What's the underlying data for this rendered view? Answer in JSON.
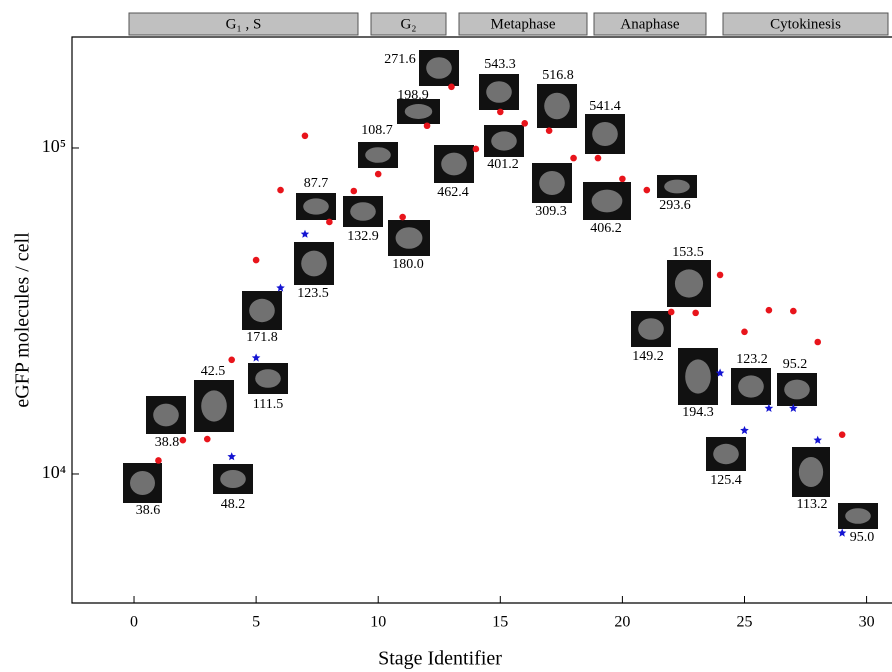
{
  "chart_data": {
    "type": "scatter",
    "xlabel": "Stage Identifier",
    "ylabel": "eGFP molecules / cell",
    "xlim": [
      -2.54,
      31
    ],
    "xticks": [
      0,
      5,
      10,
      15,
      20,
      25,
      30
    ],
    "ylim": [
      4020,
      219000
    ],
    "log_y": true,
    "yticks": [
      {
        "value": 10000,
        "label": "10⁴"
      },
      {
        "value": 100000,
        "label": "10⁵"
      }
    ],
    "phases": [
      "G₁ , S",
      "G₂",
      "Metaphase",
      "Anaphase",
      "Cytokinesis"
    ],
    "series": [
      {
        "marker": "circle",
        "color": "#e8141b",
        "x": [
          1,
          2,
          3,
          4,
          5,
          6,
          7,
          8,
          9,
          10,
          11,
          12,
          13,
          14,
          15,
          16,
          17,
          18,
          19,
          20,
          21,
          22,
          23,
          24,
          25,
          26,
          27,
          28,
          29
        ],
        "values": [
          11000,
          12700,
          12800,
          22400,
          45300,
          74300,
          109000,
          59300,
          73800,
          83200,
          61400,
          117000,
          154000,
          99300,
          129000,
          119000,
          113000,
          93100,
          93100,
          80400,
          74300,
          31400,
          31200,
          40800,
          27300,
          31800,
          31600,
          25400,
          13200
        ]
      },
      {
        "marker": "star",
        "color": "#1414d2",
        "x": [
          4,
          5,
          6,
          7,
          24,
          25,
          26,
          27,
          28,
          29
        ],
        "values": [
          11300,
          22700,
          37200,
          54400,
          20400,
          13600,
          15900,
          15900,
          12700,
          6590
        ]
      }
    ],
    "annotations": [
      "38.6",
      "38.8",
      "42.5",
      "48.2",
      "111.5",
      "171.8",
      "123.5",
      "87.7",
      "132.9",
      "108.7",
      "180.0",
      "198.9",
      "271.6",
      "462.4",
      "543.3",
      "401.2",
      "516.8",
      "309.3",
      "541.4",
      "406.2",
      "293.6",
      "153.5",
      "149.2",
      "194.3",
      "123.2",
      "95.2",
      "125.4",
      "113.2",
      "95.0"
    ]
  }
}
